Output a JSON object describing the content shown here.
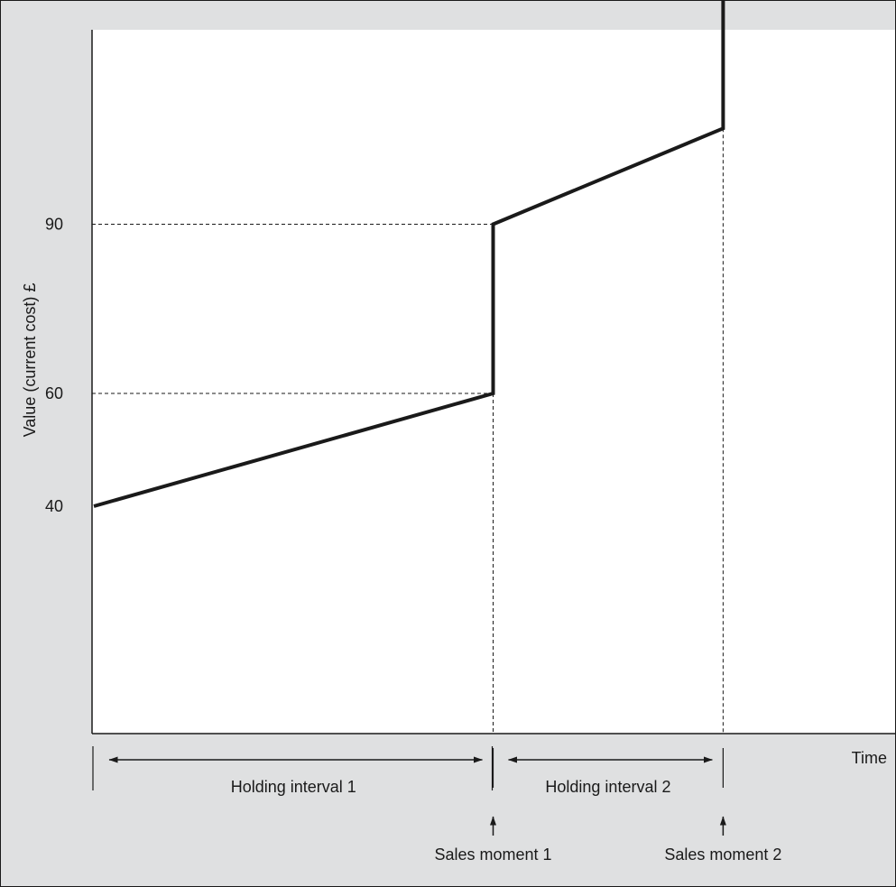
{
  "chart_data": {
    "type": "line",
    "title": "",
    "xlabel": "Time",
    "ylabel": "Value (current cost) £",
    "ylim": [
      0,
      164
    ],
    "xlim": [
      0,
      1
    ],
    "y_ticks": [
      "40",
      "60",
      "90"
    ],
    "y_tick_values": [
      40,
      60,
      90
    ],
    "grid": false,
    "series": [
      {
        "points": [
          {
            "x": 0.0,
            "y": 40
          },
          {
            "x": 0.5,
            "y": 60
          },
          {
            "x": 0.5,
            "y": 90
          },
          {
            "x": 0.788,
            "y": 107
          },
          {
            "x": 0.788,
            "y": 164
          }
        ]
      }
    ],
    "reference_lines": [
      {
        "y": 90,
        "x_end": 0.5
      },
      {
        "y": 60,
        "x_end": 0.5
      }
    ],
    "sales_moments": [
      {
        "x": 0.5,
        "label": "Sales moment 1"
      },
      {
        "x": 0.788,
        "label": "Sales moment 2"
      }
    ],
    "holding_intervals": [
      {
        "x_start": 0.0,
        "x_end": 0.5,
        "label": "Holding interval 1"
      },
      {
        "x_start": 0.5,
        "x_end": 0.788,
        "label": "Holding interval 2"
      }
    ]
  },
  "colors": {
    "background": "#dfe0e1",
    "plot_area": "#ffffff",
    "ink": "#1a1a1a"
  }
}
